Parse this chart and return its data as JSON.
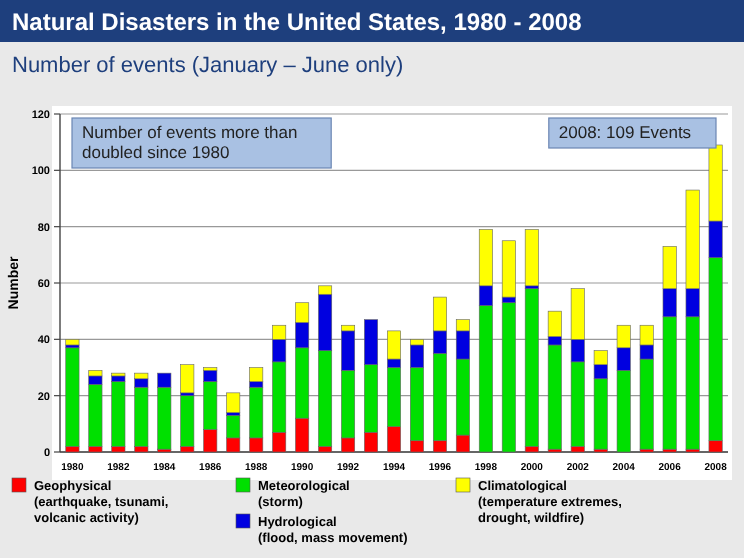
{
  "chart_data": {
    "type": "bar",
    "title": "Natural Disasters in the United States, 1980 - 2008",
    "subtitle": "Number of events (January – June only)",
    "ylabel": "Number",
    "categories": [
      "1980",
      null,
      "1982",
      null,
      "1984",
      null,
      "1986",
      null,
      "1988",
      null,
      "1990",
      null,
      "1992",
      null,
      "1994",
      null,
      "1996",
      null,
      "1998",
      null,
      "2000",
      null,
      "2002",
      null,
      "2004",
      null,
      "2006",
      null,
      "2008"
    ],
    "stacked": true,
    "ylim": [
      0,
      120
    ],
    "yticks": [
      0,
      20,
      40,
      60,
      80,
      100,
      120
    ],
    "grid": "y",
    "legend": "bottom",
    "annotations": [
      "Number of events more than doubled since 1980",
      "2008: 109 Events"
    ],
    "series": [
      {
        "name": "Geophysical (earthquake, tsunami, volcanic activity)",
        "color": "#ff0000",
        "values": [
          2,
          2,
          2,
          2,
          1,
          2,
          8,
          5,
          5,
          7,
          12,
          2,
          5,
          7,
          9,
          4,
          4,
          6,
          0,
          0,
          2,
          1,
          2,
          1,
          0,
          1,
          1,
          1,
          4
        ]
      },
      {
        "name": "Meteorological (storm)",
        "color": "#00e000",
        "values": [
          35,
          22,
          23,
          21,
          22,
          18,
          17,
          8,
          18,
          25,
          25,
          34,
          24,
          24,
          21,
          26,
          31,
          27,
          52,
          53,
          56,
          37,
          30,
          25,
          29,
          32,
          47,
          47,
          65
        ]
      },
      {
        "name": "Hydrological (flood, mass movement)",
        "color": "#0000e0",
        "values": [
          1,
          3,
          2,
          3,
          5,
          1,
          4,
          1,
          2,
          8,
          9,
          20,
          14,
          16,
          3,
          8,
          8,
          10,
          7,
          2,
          1,
          3,
          8,
          5,
          8,
          5,
          10,
          10,
          13
        ]
      },
      {
        "name": "Climatological (temperature extremes, drought, wildfire)",
        "color": "#ffff00",
        "values": [
          2,
          2,
          1,
          2,
          0,
          10,
          1,
          7,
          5,
          5,
          7,
          3,
          2,
          0,
          10,
          2,
          12,
          4,
          20,
          20,
          20,
          9,
          18,
          5,
          8,
          7,
          15,
          35,
          27
        ]
      }
    ]
  }
}
